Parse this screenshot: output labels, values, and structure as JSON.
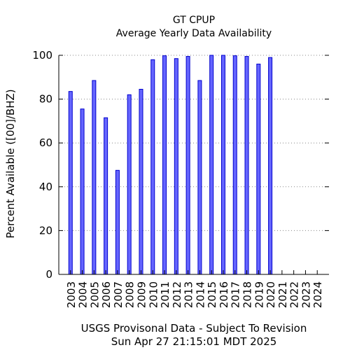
{
  "chart_data": {
    "type": "bar",
    "title": "GT CPUP",
    "subtitle": "Average Yearly Data Availability",
    "ylabel": "Percent Available ([00]/BHZ)",
    "xlabel": "",
    "ylim": [
      0,
      100
    ],
    "yticks": [
      0,
      20,
      40,
      60,
      80,
      100
    ],
    "grid": true,
    "categories": [
      "2003",
      "2004",
      "2005",
      "2006",
      "2007",
      "2008",
      "2009",
      "2010",
      "2011",
      "2012",
      "2013",
      "2014",
      "2015",
      "2016",
      "2017",
      "2018",
      "2019",
      "2020",
      "2021",
      "2022",
      "2023",
      "2024"
    ],
    "values": [
      83.5,
      75.5,
      88.5,
      71.5,
      47.5,
      82,
      84.5,
      98,
      99.8,
      98.5,
      99.5,
      88.5,
      100,
      100,
      99.8,
      99.5,
      96,
      99,
      null,
      null,
      null,
      null
    ],
    "bar_color": "#6666ff",
    "bar_edge_color": "#0000cc",
    "footer": [
      "USGS Provisonal Data - Subject To Revision",
      "Sun Apr 27 21:15:01 MDT 2025"
    ]
  }
}
